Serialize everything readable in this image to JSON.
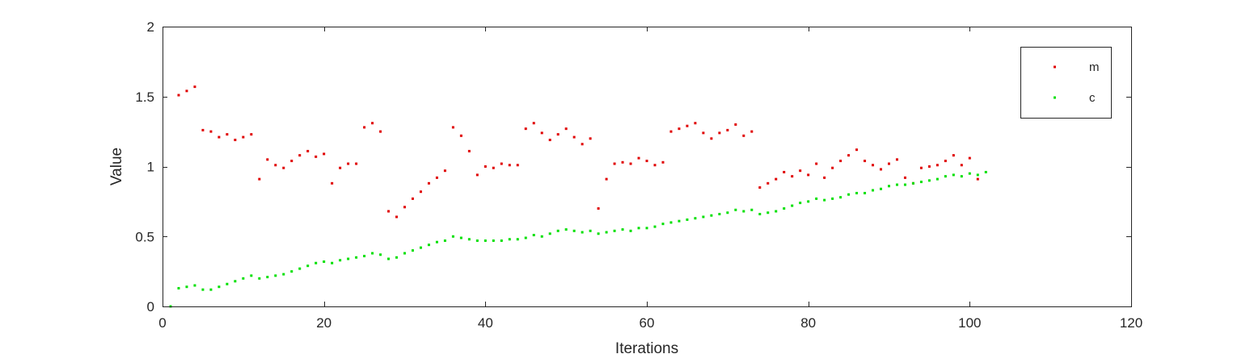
{
  "chart_data": {
    "type": "scatter",
    "title": "",
    "xlabel": "Iterations",
    "ylabel": "Value",
    "xlim": [
      0,
      120
    ],
    "ylim": [
      0,
      2
    ],
    "xticks": [
      "0",
      "20",
      "40",
      "60",
      "80",
      "100",
      "120"
    ],
    "yticks": [
      "0",
      "0.5",
      "1",
      "1.5",
      "2"
    ],
    "grid": false,
    "legend_position": "top-right",
    "series": [
      {
        "name": "m",
        "color": "#e00000",
        "points": [
          [
            2,
            1.51
          ],
          [
            3,
            1.54
          ],
          [
            4,
            1.57
          ],
          [
            5,
            1.26
          ],
          [
            6,
            1.25
          ],
          [
            7,
            1.21
          ],
          [
            8,
            1.23
          ],
          [
            9,
            1.19
          ],
          [
            10,
            1.21
          ],
          [
            11,
            1.23
          ],
          [
            12,
            0.91
          ],
          [
            13,
            1.05
          ],
          [
            14,
            1.01
          ],
          [
            15,
            0.99
          ],
          [
            16,
            1.04
          ],
          [
            17,
            1.08
          ],
          [
            18,
            1.11
          ],
          [
            19,
            1.07
          ],
          [
            20,
            1.09
          ],
          [
            21,
            0.88
          ],
          [
            22,
            0.99
          ],
          [
            23,
            1.02
          ],
          [
            24,
            1.02
          ],
          [
            25,
            1.28
          ],
          [
            26,
            1.31
          ],
          [
            27,
            1.25
          ],
          [
            28,
            0.68
          ],
          [
            29,
            0.64
          ],
          [
            30,
            0.71
          ],
          [
            31,
            0.77
          ],
          [
            32,
            0.82
          ],
          [
            33,
            0.88
          ],
          [
            34,
            0.92
          ],
          [
            35,
            0.97
          ],
          [
            36,
            1.28
          ],
          [
            37,
            1.22
          ],
          [
            38,
            1.11
          ],
          [
            39,
            0.94
          ],
          [
            40,
            1.0
          ],
          [
            41,
            0.99
          ],
          [
            42,
            1.02
          ],
          [
            43,
            1.01
          ],
          [
            44,
            1.01
          ],
          [
            45,
            1.27
          ],
          [
            46,
            1.31
          ],
          [
            47,
            1.24
          ],
          [
            48,
            1.19
          ],
          [
            49,
            1.23
          ],
          [
            50,
            1.27
          ],
          [
            51,
            1.21
          ],
          [
            52,
            1.16
          ],
          [
            53,
            1.2
          ],
          [
            54,
            0.7
          ],
          [
            55,
            0.91
          ],
          [
            56,
            1.02
          ],
          [
            57,
            1.03
          ],
          [
            58,
            1.02
          ],
          [
            59,
            1.06
          ],
          [
            60,
            1.04
          ],
          [
            61,
            1.01
          ],
          [
            62,
            1.03
          ],
          [
            63,
            1.25
          ],
          [
            64,
            1.27
          ],
          [
            65,
            1.29
          ],
          [
            66,
            1.31
          ],
          [
            67,
            1.24
          ],
          [
            68,
            1.2
          ],
          [
            69,
            1.24
          ],
          [
            70,
            1.26
          ],
          [
            71,
            1.3
          ],
          [
            72,
            1.22
          ],
          [
            73,
            1.25
          ],
          [
            74,
            0.85
          ],
          [
            75,
            0.88
          ],
          [
            76,
            0.91
          ],
          [
            77,
            0.96
          ],
          [
            78,
            0.93
          ],
          [
            79,
            0.97
          ],
          [
            80,
            0.94
          ],
          [
            81,
            1.02
          ],
          [
            82,
            0.92
          ],
          [
            83,
            0.99
          ],
          [
            84,
            1.04
          ],
          [
            85,
            1.08
          ],
          [
            86,
            1.12
          ],
          [
            87,
            1.04
          ],
          [
            88,
            1.01
          ],
          [
            89,
            0.98
          ],
          [
            90,
            1.02
          ],
          [
            91,
            1.05
          ],
          [
            92,
            0.92
          ],
          [
            93,
            0.88
          ],
          [
            94,
            0.99
          ],
          [
            95,
            1.0
          ],
          [
            96,
            1.01
          ],
          [
            97,
            1.04
          ],
          [
            98,
            1.08
          ],
          [
            99,
            1.01
          ],
          [
            100,
            1.06
          ],
          [
            101,
            0.91
          ]
        ]
      },
      {
        "name": "c",
        "color": "#00e000",
        "points": [
          [
            1,
            0.0
          ],
          [
            2,
            0.13
          ],
          [
            3,
            0.14
          ],
          [
            4,
            0.15
          ],
          [
            5,
            0.12
          ],
          [
            6,
            0.12
          ],
          [
            7,
            0.14
          ],
          [
            8,
            0.16
          ],
          [
            9,
            0.18
          ],
          [
            10,
            0.2
          ],
          [
            11,
            0.22
          ],
          [
            12,
            0.2
          ],
          [
            13,
            0.21
          ],
          [
            14,
            0.22
          ],
          [
            15,
            0.23
          ],
          [
            16,
            0.25
          ],
          [
            17,
            0.27
          ],
          [
            18,
            0.29
          ],
          [
            19,
            0.31
          ],
          [
            20,
            0.32
          ],
          [
            21,
            0.31
          ],
          [
            22,
            0.33
          ],
          [
            23,
            0.34
          ],
          [
            24,
            0.35
          ],
          [
            25,
            0.36
          ],
          [
            26,
            0.38
          ],
          [
            27,
            0.37
          ],
          [
            28,
            0.34
          ],
          [
            29,
            0.35
          ],
          [
            30,
            0.38
          ],
          [
            31,
            0.4
          ],
          [
            32,
            0.42
          ],
          [
            33,
            0.44
          ],
          [
            34,
            0.46
          ],
          [
            35,
            0.47
          ],
          [
            36,
            0.5
          ],
          [
            37,
            0.49
          ],
          [
            38,
            0.48
          ],
          [
            39,
            0.47
          ],
          [
            40,
            0.47
          ],
          [
            41,
            0.47
          ],
          [
            42,
            0.47
          ],
          [
            43,
            0.48
          ],
          [
            44,
            0.48
          ],
          [
            45,
            0.49
          ],
          [
            46,
            0.51
          ],
          [
            47,
            0.5
          ],
          [
            48,
            0.52
          ],
          [
            49,
            0.54
          ],
          [
            50,
            0.55
          ],
          [
            51,
            0.54
          ],
          [
            52,
            0.53
          ],
          [
            53,
            0.54
          ],
          [
            54,
            0.52
          ],
          [
            55,
            0.53
          ],
          [
            56,
            0.54
          ],
          [
            57,
            0.55
          ],
          [
            58,
            0.54
          ],
          [
            59,
            0.56
          ],
          [
            60,
            0.56
          ],
          [
            61,
            0.57
          ],
          [
            62,
            0.59
          ],
          [
            63,
            0.6
          ],
          [
            64,
            0.61
          ],
          [
            65,
            0.62
          ],
          [
            66,
            0.63
          ],
          [
            67,
            0.64
          ],
          [
            68,
            0.65
          ],
          [
            69,
            0.66
          ],
          [
            70,
            0.67
          ],
          [
            71,
            0.69
          ],
          [
            72,
            0.68
          ],
          [
            73,
            0.69
          ],
          [
            74,
            0.66
          ],
          [
            75,
            0.67
          ],
          [
            76,
            0.68
          ],
          [
            77,
            0.7
          ],
          [
            78,
            0.72
          ],
          [
            79,
            0.74
          ],
          [
            80,
            0.75
          ],
          [
            81,
            0.77
          ],
          [
            82,
            0.76
          ],
          [
            83,
            0.77
          ],
          [
            84,
            0.78
          ],
          [
            85,
            0.8
          ],
          [
            86,
            0.81
          ],
          [
            87,
            0.81
          ],
          [
            88,
            0.83
          ],
          [
            89,
            0.84
          ],
          [
            90,
            0.86
          ],
          [
            91,
            0.87
          ],
          [
            92,
            0.87
          ],
          [
            93,
            0.88
          ],
          [
            94,
            0.89
          ],
          [
            95,
            0.9
          ],
          [
            96,
            0.91
          ],
          [
            97,
            0.93
          ],
          [
            98,
            0.94
          ],
          [
            99,
            0.93
          ],
          [
            100,
            0.95
          ],
          [
            101,
            0.94
          ],
          [
            102,
            0.96
          ]
        ]
      }
    ]
  }
}
